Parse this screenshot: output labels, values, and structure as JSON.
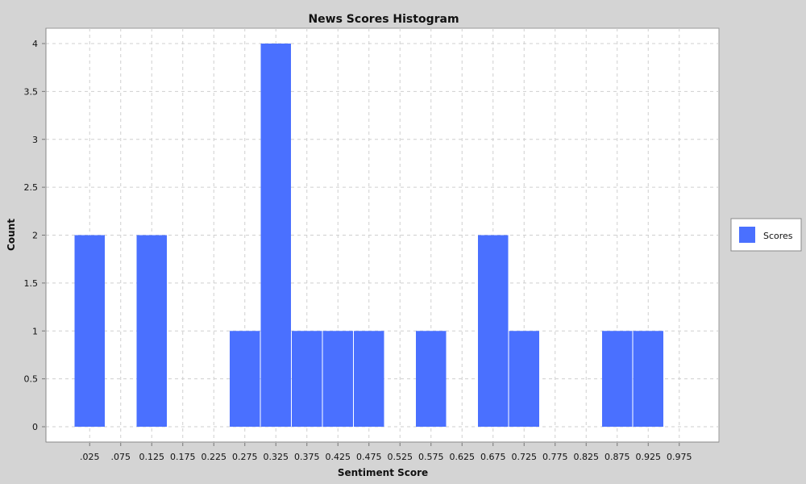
{
  "chart_data": {
    "type": "bar",
    "title": "News Scores Histogram",
    "xlabel": "Sentiment Score",
    "ylabel": "Count",
    "x_tick_labels": [
      ".025",
      ".075",
      "0.125",
      "0.175",
      "0.225",
      "0.275",
      "0.325",
      "0.375",
      "0.425",
      "0.475",
      "0.525",
      "0.575",
      "0.625",
      "0.675",
      "0.725",
      "0.775",
      "0.825",
      "0.875",
      "0.925",
      "0.975"
    ],
    "y_tick_labels": [
      "0",
      "0.5",
      "1",
      "1.5",
      "2",
      "2.5",
      "3",
      "3.5",
      "4"
    ],
    "ylim": [
      0,
      4
    ],
    "xlim": [
      -0.025,
      1.025
    ],
    "grid": true,
    "legend_position": "right",
    "series": [
      {
        "name": "Scores",
        "color": "#4a70ff",
        "bins": [
          {
            "start": 0.0,
            "end": 0.05,
            "count": 2
          },
          {
            "start": 0.1,
            "end": 0.15,
            "count": 2
          },
          {
            "start": 0.25,
            "end": 0.3,
            "count": 1
          },
          {
            "start": 0.3,
            "end": 0.35,
            "count": 4
          },
          {
            "start": 0.35,
            "end": 0.4,
            "count": 1
          },
          {
            "start": 0.4,
            "end": 0.45,
            "count": 1
          },
          {
            "start": 0.45,
            "end": 0.5,
            "count": 1
          },
          {
            "start": 0.55,
            "end": 0.6,
            "count": 1
          },
          {
            "start": 0.65,
            "end": 0.7,
            "count": 2
          },
          {
            "start": 0.7,
            "end": 0.75,
            "count": 1
          },
          {
            "start": 0.85,
            "end": 0.9,
            "count": 1
          },
          {
            "start": 0.9,
            "end": 0.95,
            "count": 1
          }
        ]
      }
    ]
  }
}
